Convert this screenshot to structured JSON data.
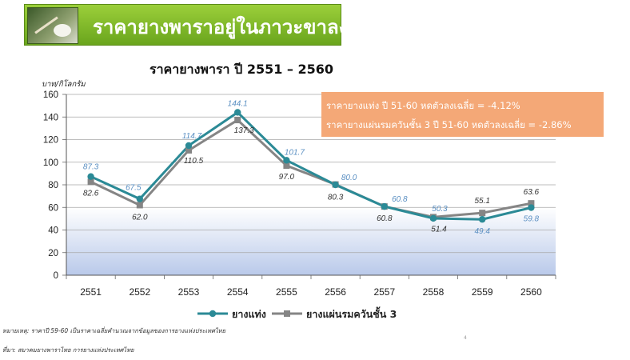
{
  "header": {
    "title": "ราคายางพาราอยู่ในภาวะขาลง"
  },
  "chart_data": {
    "type": "line",
    "title": "ราคายางพารา ปี 2551 – 2560",
    "ylabel": "บาท/กิโลกรัม",
    "xlabel": "",
    "ylim": [
      0,
      160
    ],
    "yticks": [
      "0",
      "20",
      "40",
      "60",
      "80",
      "100",
      "120",
      "140",
      "160"
    ],
    "categories": [
      "2551",
      "2552",
      "2553",
      "2554",
      "2555",
      "2556",
      "2557",
      "2558",
      "2559",
      "2560"
    ],
    "grid": true,
    "legend_position": "bottom",
    "series": [
      {
        "name": "ยางแท่ง",
        "color": "#2b8a96",
        "values": [
          87.3,
          67.5,
          114.7,
          144.1,
          101.7,
          80.0,
          60.8,
          50.3,
          49.4,
          59.8
        ],
        "labels": [
          "87.3",
          "67.5",
          "114.7",
          "144.1",
          "101.7",
          "80.0",
          "60.8",
          "50.3",
          "49.4",
          "59.8"
        ]
      },
      {
        "name": "ยางแผ่นรมควันชั้น 3",
        "color": "#858585",
        "values": [
          82.6,
          62.0,
          110.5,
          137.3,
          97.0,
          80.3,
          60.8,
          51.4,
          55.1,
          63.6
        ],
        "labels": [
          "82.6",
          "62.0",
          "110.5",
          "137.3",
          "97.0",
          "80.3",
          "60.8",
          "51.4",
          "55.1",
          "63.6"
        ]
      }
    ],
    "annotations": [
      "ราคายางแท่ง ปี 51-60 หดตัวลงเฉลี่ย = -4.12%",
      "ราคายางแผ่นรมควันชั้น 3 ปี 51-60 หดตัวลงเฉลี่ย = -2.86%"
    ]
  },
  "footnotes": {
    "note": "หมายเหตุ:  ราคาปี 59-60 เป็นราคาเฉลี่ยคำนวณจากข้อมูลของการยางแห่งประเทศไทย",
    "source": "ที่มา:  สมาคมยางพาราไทย การยางแห่งประเทศไทย"
  },
  "page_number": "4"
}
